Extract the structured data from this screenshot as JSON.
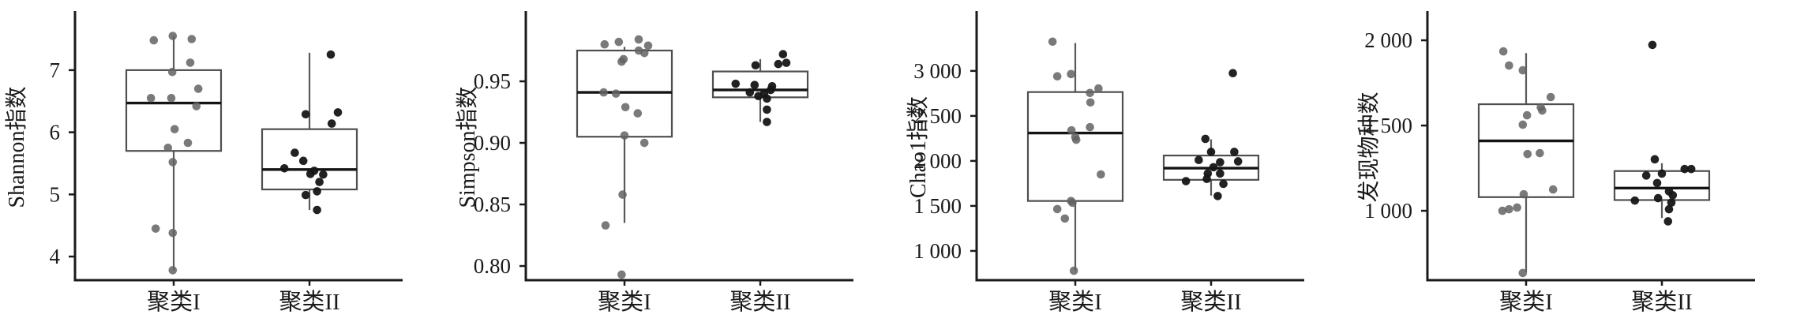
{
  "figure": {
    "background": "#ffffff",
    "description": "Four box plots of alpha diversity indices comparing cluster I and cluster II"
  },
  "style": {
    "axis_color": "#1a1a1a",
    "box_color": "#4f4f4f",
    "median_color": "#141414",
    "whisker_color": "#5a5a5a",
    "cluster1_point_color": "#636363",
    "cluster2_point_color": "#161616"
  },
  "chart_data": [
    {
      "type": "box",
      "id": "shannon",
      "ylabel": "Shannon指数",
      "categories": [
        "聚类I",
        "聚类II"
      ],
      "ylim": [
        3.62,
        7.9
      ],
      "grid": false,
      "yticks": [
        {
          "value": 7,
          "label": "7"
        },
        {
          "value": 6,
          "label": "6"
        },
        {
          "value": 5,
          "label": "5"
        },
        {
          "value": 4,
          "label": "4"
        }
      ],
      "groups": [
        {
          "category": "聚类I",
          "stats": {
            "whisker_low": 3.78,
            "q1": 5.7,
            "median": 6.47,
            "q3": 7.0,
            "whisker_high": 7.55
          },
          "points": [
            [
              7.48,
              -0.42
            ],
            [
              7.55,
              -0.02
            ],
            [
              7.5,
              0.38
            ],
            [
              7.12,
              0.35
            ],
            [
              6.97,
              -0.03
            ],
            [
              6.7,
              0.52
            ],
            [
              6.55,
              -0.48
            ],
            [
              6.55,
              -0.05
            ],
            [
              6.42,
              0.48
            ],
            [
              6.05,
              0.02
            ],
            [
              5.83,
              0.3
            ],
            [
              5.75,
              -0.12
            ],
            [
              5.52,
              -0.02
            ],
            [
              4.45,
              -0.38
            ],
            [
              4.38,
              -0.02
            ],
            [
              3.78,
              -0.02
            ]
          ]
        },
        {
          "category": "聚类II",
          "stats": {
            "whisker_low": 4.75,
            "q1": 5.08,
            "median": 5.4,
            "q3": 6.05,
            "whisker_high": 7.28
          },
          "points": [
            [
              7.25,
              0.45
            ],
            [
              6.32,
              0.6
            ],
            [
              6.29,
              -0.08
            ],
            [
              6.14,
              0.47
            ],
            [
              5.67,
              -0.31
            ],
            [
              5.54,
              -0.13
            ],
            [
              5.42,
              -0.53
            ],
            [
              5.38,
              0.1
            ],
            [
              5.33,
              0.02
            ],
            [
              5.32,
              0.29
            ],
            [
              5.2,
              0.21
            ],
            [
              5.05,
              0.16
            ],
            [
              4.99,
              -0.08
            ],
            [
              4.75,
              0.16
            ]
          ]
        }
      ]
    },
    {
      "type": "box",
      "id": "simpson",
      "ylabel": "Simpson指数",
      "categories": [
        "聚类I",
        "聚类II"
      ],
      "ylim": [
        0.7885,
        1.0045
      ],
      "grid": false,
      "yticks": [
        {
          "value": 0.95,
          "label": "0.95"
        },
        {
          "value": 0.9,
          "label": "0.90"
        },
        {
          "value": 0.85,
          "label": "0.85"
        },
        {
          "value": 0.8,
          "label": "0.80"
        }
      ],
      "groups": [
        {
          "category": "聚类I",
          "stats": {
            "whisker_low": 0.835,
            "q1": 0.905,
            "median": 0.941,
            "q3": 0.975,
            "whisker_high": 0.978
          },
          "points": [
            [
              0.984,
              0.3
            ],
            [
              0.982,
              -0.12
            ],
            [
              0.98,
              -0.42
            ],
            [
              0.979,
              0.5
            ],
            [
              0.975,
              0.3
            ],
            [
              0.973,
              0.42
            ],
            [
              0.968,
              -0.02
            ],
            [
              0.966,
              -0.06
            ],
            [
              0.941,
              -0.44
            ],
            [
              0.94,
              -0.18
            ],
            [
              0.929,
              0.02
            ],
            [
              0.924,
              0.28
            ],
            [
              0.906,
              0.0
            ],
            [
              0.9,
              0.42
            ],
            [
              0.858,
              -0.04
            ],
            [
              0.833,
              -0.4
            ],
            [
              0.793,
              -0.06
            ]
          ]
        },
        {
          "category": "聚类II",
          "stats": {
            "whisker_low": 0.917,
            "q1": 0.937,
            "median": 0.943,
            "q3": 0.958,
            "whisker_high": 0.968
          },
          "points": [
            [
              0.972,
              0.48
            ],
            [
              0.965,
              0.55
            ],
            [
              0.964,
              0.38
            ],
            [
              0.963,
              -0.1
            ],
            [
              0.948,
              -0.52
            ],
            [
              0.947,
              -0.12
            ],
            [
              0.946,
              0.25
            ],
            [
              0.943,
              0.22
            ],
            [
              0.941,
              -0.22
            ],
            [
              0.94,
              0.08
            ],
            [
              0.938,
              -0.04
            ],
            [
              0.936,
              0.14
            ],
            [
              0.927,
              0.14
            ],
            [
              0.917,
              0.14
            ]
          ]
        }
      ]
    },
    {
      "type": "box",
      "id": "chao1",
      "ylabel": "Chao1指数",
      "categories": [
        "聚类I",
        "聚类II"
      ],
      "ylim": [
        675,
        3630
      ],
      "grid": false,
      "yticks": [
        {
          "value": 3000,
          "label": "3 000"
        },
        {
          "value": 2500,
          "label": "2 500"
        },
        {
          "value": 2000,
          "label": "2 000"
        },
        {
          "value": 1500,
          "label": "1 500"
        },
        {
          "value": 1000,
          "label": "1 000"
        }
      ],
      "groups": [
        {
          "category": "聚类I",
          "stats": {
            "whisker_low": 780,
            "q1": 1555,
            "median": 2310,
            "q3": 2765,
            "whisker_high": 3310
          },
          "points": [
            [
              3325,
              -0.48
            ],
            [
              2965,
              -0.09
            ],
            [
              2940,
              -0.38
            ],
            [
              2805,
              0.49
            ],
            [
              2755,
              0.31
            ],
            [
              2650,
              0.32
            ],
            [
              2375,
              0.31
            ],
            [
              2340,
              -0.08
            ],
            [
              2265,
              0.0
            ],
            [
              2235,
              0.02
            ],
            [
              1850,
              0.54
            ],
            [
              1555,
              -0.09
            ],
            [
              1535,
              -0.06
            ],
            [
              1465,
              -0.38
            ],
            [
              1360,
              -0.22
            ],
            [
              780,
              -0.03
            ]
          ]
        },
        {
          "category": "聚类II",
          "stats": {
            "whisker_low": 1615,
            "q1": 1790,
            "median": 1920,
            "q3": 2060,
            "whisker_high": 2240
          },
          "points": [
            [
              2975,
              0.46
            ],
            [
              2245,
              -0.12
            ],
            [
              2100,
              0.0
            ],
            [
              2100,
              0.49
            ],
            [
              2010,
              -0.26
            ],
            [
              1995,
              0.57
            ],
            [
              1985,
              0.19
            ],
            [
              1930,
              0.05
            ],
            [
              1860,
              -0.07
            ],
            [
              1860,
              0.19
            ],
            [
              1800,
              -0.09
            ],
            [
              1775,
              -0.53
            ],
            [
              1745,
              0.26
            ],
            [
              1610,
              0.14
            ]
          ]
        }
      ]
    },
    {
      "type": "box",
      "id": "observed-species",
      "ylabel": "发现物种数",
      "categories": [
        "聚类I",
        "聚类II"
      ],
      "ylim": [
        593,
        2153
      ],
      "grid": false,
      "yticks": [
        {
          "value": 2000,
          "label": "2 000"
        },
        {
          "value": 1500,
          "label": "1 500"
        },
        {
          "value": 1000,
          "label": "1 000"
        }
      ],
      "groups": [
        {
          "category": "聚类I",
          "stats": {
            "whisker_low": 640,
            "q1": 1080,
            "median": 1410,
            "q3": 1625,
            "whisker_high": 1925
          },
          "points": [
            [
              1935,
              -0.48
            ],
            [
              1852,
              -0.36
            ],
            [
              1824,
              -0.07
            ],
            [
              1667,
              0.52
            ],
            [
              1607,
              0.31
            ],
            [
              1588,
              0.34
            ],
            [
              1560,
              0.02
            ],
            [
              1505,
              -0.07
            ],
            [
              1338,
              0.29
            ],
            [
              1333,
              0.03
            ],
            [
              1125,
              0.57
            ],
            [
              1097,
              -0.05
            ],
            [
              1019,
              -0.19
            ],
            [
              1009,
              -0.36
            ],
            [
              1000,
              -0.5
            ],
            [
              635,
              -0.07
            ]
          ]
        },
        {
          "category": "聚类II",
          "stats": {
            "whisker_low": 958,
            "q1": 1063,
            "median": 1133,
            "q3": 1233,
            "whisker_high": 1279
          },
          "points": [
            [
              1973,
              -0.2
            ],
            [
              1302,
              -0.15
            ],
            [
              1245,
              0.48
            ],
            [
              1245,
              0.62
            ],
            [
              1218,
              0.0
            ],
            [
              1207,
              -0.33
            ],
            [
              1163,
              -0.1
            ],
            [
              1114,
              0.15
            ],
            [
              1091,
              0.23
            ],
            [
              1074,
              -0.08
            ],
            [
              1060,
              -0.57
            ],
            [
              1048,
              0.2
            ],
            [
              1009,
              0.15
            ],
            [
              938,
              0.13
            ]
          ]
        }
      ]
    }
  ]
}
